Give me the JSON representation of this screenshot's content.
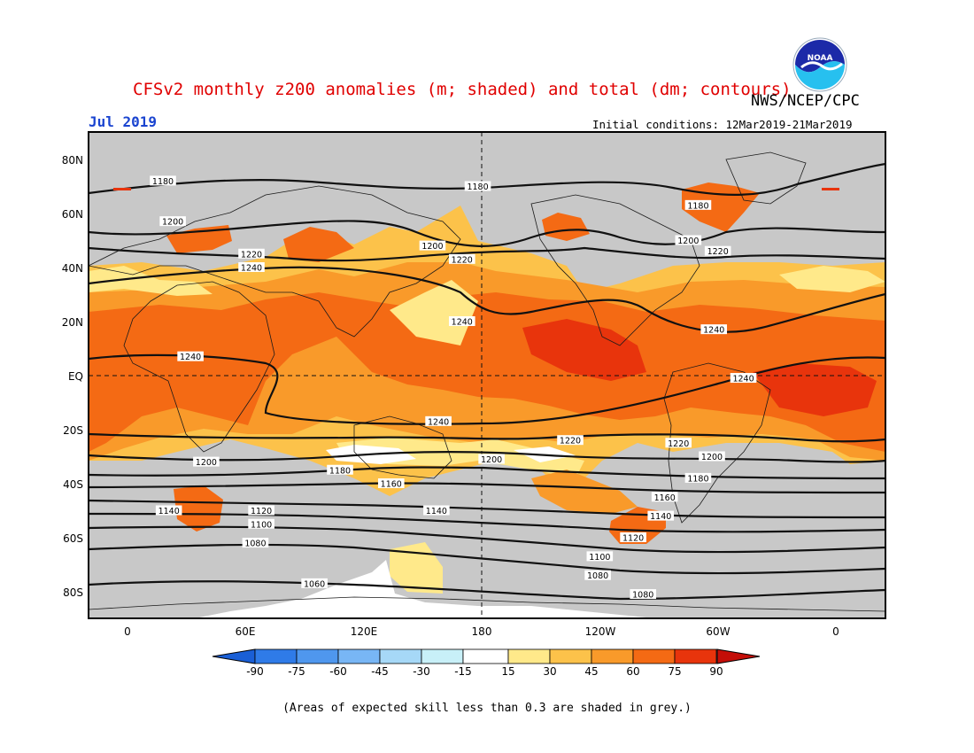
{
  "title": "CFSv2 monthly z200 anomalies (m; shaded) and total (dm; contours)",
  "agency": "NWS/NCEP/CPC",
  "month_label": "Jul 2019",
  "initial_conditions": "Initial conditions: 12Mar2019-21Mar2019",
  "logo_text": "NOAA",
  "footnote": "(Areas of expected skill less than 0.3 are shaded in grey.)",
  "axes": {
    "lat_labels": [
      "80N",
      "60N",
      "40N",
      "20N",
      "EQ",
      "20S",
      "40S",
      "60S",
      "80S"
    ],
    "lon_labels": [
      "0",
      "60E",
      "120E",
      "180",
      "120W",
      "60W",
      "0"
    ]
  },
  "colorbar": {
    "labels": [
      "-90",
      "-75",
      "-60",
      "-45",
      "-30",
      "-15",
      "15",
      "30",
      "45",
      "60",
      "75",
      "90"
    ],
    "colors": [
      "#1a5fd6",
      "#2f7be8",
      "#4f97ee",
      "#78b6f5",
      "#a6d8f7",
      "#c8f0f8",
      "#ffffff",
      "#ffe98a",
      "#fcc24a",
      "#f99a2a",
      "#f46a14",
      "#e8340c",
      "#c40e08"
    ]
  },
  "colors": {
    "grey_mask": "#c8c8c8",
    "title_red": "#e00000",
    "month_blue": "#1a44d0"
  },
  "contour_labels": [
    {
      "text": "1180",
      "lat": 72,
      "lon": 18
    },
    {
      "text": "1180",
      "lat": 70,
      "lon": 178
    },
    {
      "text": "1180",
      "lat": 63,
      "lon": 290
    },
    {
      "text": "1200",
      "lat": 57,
      "lon": 23
    },
    {
      "text": "1200",
      "lat": 48,
      "lon": 155
    },
    {
      "text": "1200",
      "lat": 50,
      "lon": 285
    },
    {
      "text": "1220",
      "lat": 45,
      "lon": 63
    },
    {
      "text": "1220",
      "lat": 43,
      "lon": 170
    },
    {
      "text": "1220",
      "lat": 46,
      "lon": 300
    },
    {
      "text": "1240",
      "lat": 40,
      "lon": 63
    },
    {
      "text": "1240",
      "lat": 20,
      "lon": 170
    },
    {
      "text": "1240",
      "lat": 17,
      "lon": 298
    },
    {
      "text": "1240",
      "lat": 7,
      "lon": 32
    },
    {
      "text": "1240",
      "lat": -1,
      "lon": 313
    },
    {
      "text": "1240",
      "lat": -17,
      "lon": 158
    },
    {
      "text": "1220",
      "lat": -24,
      "lon": 225
    },
    {
      "text": "1220",
      "lat": -25,
      "lon": 280
    },
    {
      "text": "1200",
      "lat": -31,
      "lon": 185
    },
    {
      "text": "1200",
      "lat": -30,
      "lon": 297
    },
    {
      "text": "1200",
      "lat": -32,
      "lon": 40
    },
    {
      "text": "1180",
      "lat": -35,
      "lon": 108
    },
    {
      "text": "1180",
      "lat": -38,
      "lon": 290
    },
    {
      "text": "1160",
      "lat": -40,
      "lon": 134
    },
    {
      "text": "1160",
      "lat": -45,
      "lon": 273
    },
    {
      "text": "1140",
      "lat": -50,
      "lon": 21
    },
    {
      "text": "1140",
      "lat": -50,
      "lon": 157
    },
    {
      "text": "1140",
      "lat": -52,
      "lon": 271
    },
    {
      "text": "1120",
      "lat": -50,
      "lon": 68
    },
    {
      "text": "1120",
      "lat": -60,
      "lon": 257
    },
    {
      "text": "1100",
      "lat": -55,
      "lon": 68
    },
    {
      "text": "1100",
      "lat": -67,
      "lon": 240
    },
    {
      "text": "1080",
      "lat": -62,
      "lon": 65
    },
    {
      "text": "1080",
      "lat": -74,
      "lon": 239
    },
    {
      "text": "1080",
      "lat": -81,
      "lon": 262
    },
    {
      "text": "1060",
      "lat": -77,
      "lon": 95
    }
  ]
}
